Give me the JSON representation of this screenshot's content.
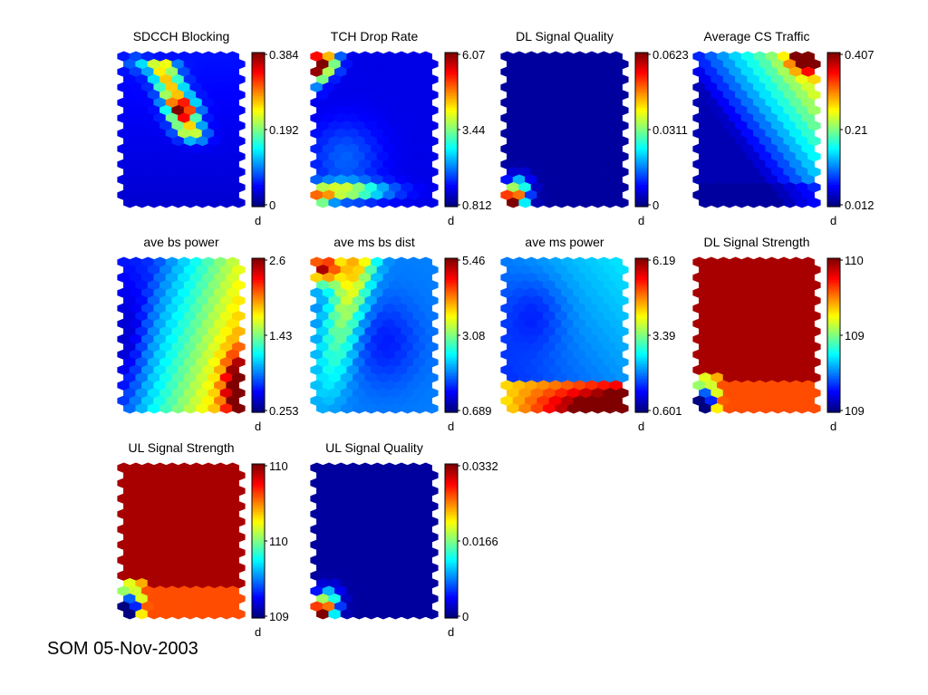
{
  "figure": {
    "footer": "SOM 05-Nov-2003",
    "colormap": "jet"
  },
  "chart_data": [
    {
      "type": "heatmap",
      "title": "SDCCH Blocking",
      "colorbar_ticks": [
        "0.384",
        "0.192",
        "0"
      ],
      "colorbar_label": "d",
      "range": [
        0,
        0.384
      ],
      "pattern": {
        "kind": "sdcch"
      }
    },
    {
      "type": "heatmap",
      "title": "TCH Drop Rate",
      "colorbar_ticks": [
        "6.07",
        "3.44",
        "0.812"
      ],
      "colorbar_label": "d",
      "range": [
        0.812,
        6.07
      ],
      "pattern": {
        "kind": "tchdrop"
      }
    },
    {
      "type": "heatmap",
      "title": "DL Signal Quality",
      "colorbar_ticks": [
        "0.0623",
        "0.0311",
        "0"
      ],
      "colorbar_label": "d",
      "range": [
        0,
        0.0623
      ],
      "pattern": {
        "kind": "corner"
      }
    },
    {
      "type": "heatmap",
      "title": "Average CS Traffic",
      "colorbar_ticks": [
        "0.407",
        "0.21",
        "0.012"
      ],
      "colorbar_label": "d",
      "range": [
        0.012,
        0.407
      ],
      "pattern": {
        "kind": "traffic"
      }
    },
    {
      "type": "heatmap",
      "title": "ave bs power",
      "colorbar_ticks": [
        "2.6",
        "1.43",
        "0.253"
      ],
      "colorbar_label": "d",
      "range": [
        0.253,
        2.6
      ],
      "pattern": {
        "kind": "bspower"
      }
    },
    {
      "type": "heatmap",
      "title": "ave ms bs dist",
      "colorbar_ticks": [
        "5.46",
        "3.08",
        "0.689"
      ],
      "colorbar_label": "d",
      "range": [
        0.689,
        5.46
      ],
      "pattern": {
        "kind": "dist"
      }
    },
    {
      "type": "heatmap",
      "title": "ave ms power",
      "colorbar_ticks": [
        "6.19",
        "3.39",
        "0.601"
      ],
      "colorbar_label": "d",
      "range": [
        0.601,
        6.19
      ],
      "pattern": {
        "kind": "mspower"
      }
    },
    {
      "type": "heatmap",
      "title": "DL Signal Strength",
      "colorbar_ticks": [
        "110",
        "109",
        "109"
      ],
      "colorbar_label": "d",
      "range": [
        109,
        110
      ],
      "pattern": {
        "kind": "strength"
      }
    },
    {
      "type": "heatmap",
      "title": "UL Signal Strength",
      "colorbar_ticks": [
        "110",
        "110",
        "109"
      ],
      "colorbar_label": "d",
      "range": [
        109,
        110
      ],
      "pattern": {
        "kind": "strength"
      }
    },
    {
      "type": "heatmap",
      "title": "UL Signal Quality",
      "colorbar_ticks": [
        "0.0332",
        "0.0166",
        "0"
      ],
      "colorbar_label": "d",
      "range": [
        0,
        0.0332
      ],
      "pattern": {
        "kind": "corner"
      }
    }
  ]
}
